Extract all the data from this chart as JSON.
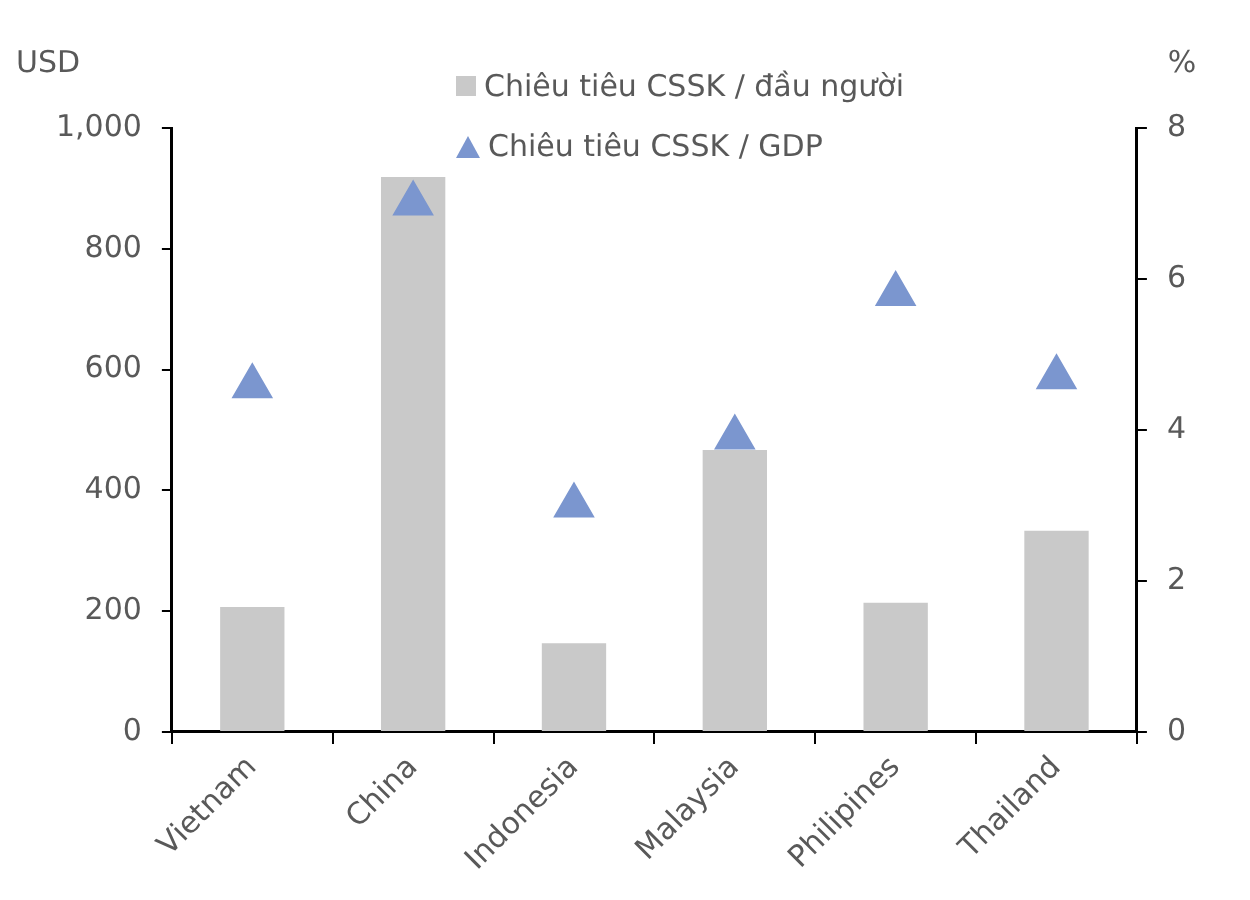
{
  "chart_data": {
    "type": "bar",
    "ylabel": "USD",
    "y2label": "%",
    "categories": [
      "Vietnam",
      "China",
      "Indonesia",
      "Malaysia",
      "Philipines",
      "Thailand"
    ],
    "series": [
      {
        "name": "Chiêu tiêu CSSK / đầu người",
        "color": "#c9c9c9",
        "values": [
          207,
          919,
          147,
          467,
          214,
          333
        ]
      },
      {
        "name": "Chiêu tiêu CSSK / GDP",
        "type": "scatter",
        "axis": "y2",
        "marker": "triangle",
        "color": "#7b96cf",
        "x": [
          "Vietnam",
          "China",
          "Indonesia",
          "Malaysia",
          "Philipines",
          "Thailand"
        ],
        "values": [
          4.58,
          7.0,
          3.0,
          3.9,
          5.8,
          4.7
        ]
      }
    ],
    "ylim": [
      0,
      1000
    ],
    "yticks": [
      0,
      {
        "value": 200,
        "label": "200"
      },
      400,
      600,
      800,
      {
        "value": 1000,
        "label": "1,000"
      }
    ],
    "y2lim": [
      0,
      8
    ],
    "y2ticks": [
      0,
      2,
      4,
      6,
      8
    ],
    "grid": false,
    "legend": "top"
  }
}
